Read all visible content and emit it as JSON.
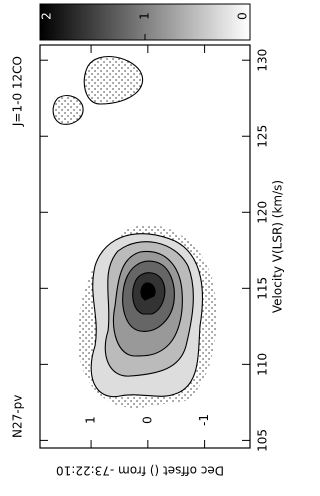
{
  "chart_data": {
    "type": "contour",
    "title": "N27-pv",
    "subtitle": "J=1-0 12CO",
    "x_label": "Velocity V(LSR) (km/s)",
    "y_label": "Dec offset () from -73:22:10",
    "xlim": [
      104.5,
      131
    ],
    "xticks": [
      105,
      110,
      115,
      120,
      125,
      130
    ],
    "ylim": [
      -1.8,
      1.9
    ],
    "yticks": [
      -1,
      0,
      1
    ],
    "colorbar_lim": [
      0,
      2
    ],
    "colorbar_ticks": [
      0,
      1,
      2
    ]
  }
}
